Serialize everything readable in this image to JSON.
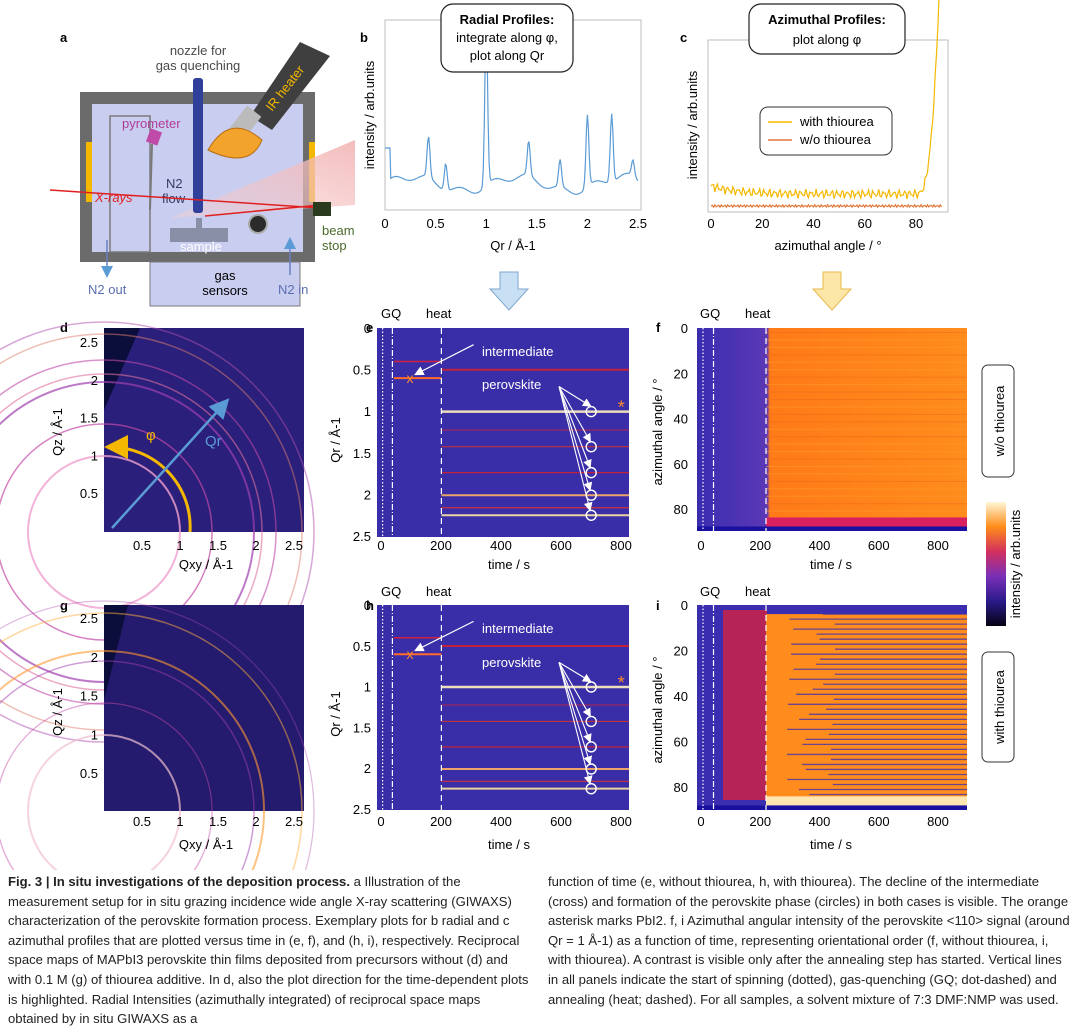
{
  "panels": {
    "a": {
      "letter": "a",
      "labels": {
        "nozzle": [
          "nozzle for",
          "gas quenching"
        ],
        "ir_heater": "IR heater",
        "pyrometer": "pyrometer",
        "xrays": "X-rays",
        "n2_flow": [
          "N2",
          "flow"
        ],
        "sample": "sample",
        "gas_sensors": [
          "gas",
          "sensors"
        ],
        "beam_stop": [
          "beam",
          "stop"
        ],
        "n2_out": "N2 out",
        "n2_in": "N2 in"
      }
    },
    "b": {
      "letter": "b",
      "box_title": "Radial Profiles:",
      "box_lines": [
        "integrate along φ,",
        "plot along Qr"
      ],
      "ylabel": "intensity / arb.units",
      "xlabel": "Qr / Å-1",
      "xticks": [
        "0",
        "0.5",
        "1",
        "1.5",
        "2",
        "2.5"
      ]
    },
    "c": {
      "letter": "c",
      "box_title": "Azimuthal Profiles:",
      "box_lines": [
        "plot along φ"
      ],
      "ylabel": "intensity / arb.units",
      "xlabel": "azimuthal angle / °",
      "xticks": [
        "0",
        "20",
        "40",
        "60",
        "80"
      ],
      "legend": [
        "with thiourea",
        "w/o thiourea"
      ]
    },
    "d": {
      "letter": "d",
      "ylabel": "Qz / Å-1",
      "xlabel": "Qxy / Å-1",
      "yticks": [
        "0.5",
        "1",
        "1.5",
        "2",
        "2.5"
      ],
      "xticks": [
        "0.5",
        "1",
        "1.5",
        "2",
        "2.5"
      ],
      "phi": "φ",
      "qr": "Qr"
    },
    "e": {
      "letter": "e",
      "top_labels": [
        "GQ",
        "heat"
      ],
      "annotations": [
        "intermediate",
        "perovskite"
      ],
      "ylabel": "Qr / Å-1",
      "xlabel": "time / s",
      "yticks": [
        "0",
        "0.5",
        "1",
        "1.5",
        "2",
        "2.5"
      ],
      "xticks": [
        "0",
        "200",
        "400",
        "600",
        "800"
      ]
    },
    "f": {
      "letter": "f",
      "top_labels": [
        "GQ",
        "heat"
      ],
      "ylabel": "azimuthal angle / °",
      "xlabel": "time / s",
      "yticks": [
        "0",
        "20",
        "40",
        "60",
        "80"
      ],
      "xticks": [
        "0",
        "200",
        "400",
        "600",
        "800"
      ],
      "side_label": "w/o thiourea"
    },
    "g": {
      "letter": "g",
      "ylabel": "Qz / Å-1",
      "xlabel": "Qxy / Å-1",
      "yticks": [
        "0.5",
        "1",
        "1.5",
        "2",
        "2.5"
      ],
      "xticks": [
        "0.5",
        "1",
        "1.5",
        "2",
        "2.5"
      ]
    },
    "h": {
      "letter": "h",
      "top_labels": [
        "GQ",
        "heat"
      ],
      "annotations": [
        "intermediate",
        "perovskite"
      ],
      "ylabel": "Qr / Å-1",
      "xlabel": "time / s",
      "yticks": [
        "0",
        "0.5",
        "1",
        "1.5",
        "2",
        "2.5"
      ],
      "xticks": [
        "0",
        "200",
        "400",
        "600",
        "800"
      ]
    },
    "i": {
      "letter": "i",
      "top_labels": [
        "GQ",
        "heat"
      ],
      "ylabel": "azimuthal angle / °",
      "xlabel": "time / s",
      "yticks": [
        "0",
        "20",
        "40",
        "60",
        "80"
      ],
      "xticks": [
        "0",
        "200",
        "400",
        "600",
        "800"
      ],
      "side_label": "with thiourea"
    },
    "colorbar": {
      "label": "intensity / arb.units"
    }
  },
  "colors": {
    "profile_blue": "#5b9bd5",
    "with_thiourea": "#f5b800",
    "without_thiourea": "#e0783a",
    "map_low": "#2a1a8a",
    "map_high": "#ffd24a",
    "arrow_blue": "#c9dff3",
    "arrow_orange": "#fde7a8"
  },
  "caption": {
    "heading": "Fig. 3 | In situ investigations of the deposition process.",
    "left": "a Illustration of the measurement setup for in situ grazing incidence wide angle X-ray scattering (GIWAXS) characterization of the perovskite formation process. Exemplary plots for b radial and c azimuthal profiles that are plotted versus time in (e, f), and (h, i), respectively. Reciprocal space maps of MAPbI3 perovskite thin films deposited from precursors without (d) and with 0.1 M (g) of thiourea additive. In d, also the plot direction for the time-dependent plots is highlighted. Radial Intensities (azimuthally integrated) of reciprocal space maps obtained by in situ GIWAXS as a",
    "right": "function of time (e, without thiourea, h, with thiourea). The decline of the intermediate (cross) and formation of the perovskite phase (circles) in both cases is visible. The orange asterisk marks PbI2. f, i Azimuthal angular intensity of the perovskite <110> signal (around Qr = 1 Å-1) as a function of time, representing orientational order (f, without thiourea, i, with thiourea). A contrast is visible only after the annealing step has started. Vertical lines in all panels indicate the start of spinning (dotted), gas-quenching (GQ; dot-dashed) and annealing (heat; dashed). For all samples, a solvent mixture of 7:3 DMF:NMP was used."
  }
}
